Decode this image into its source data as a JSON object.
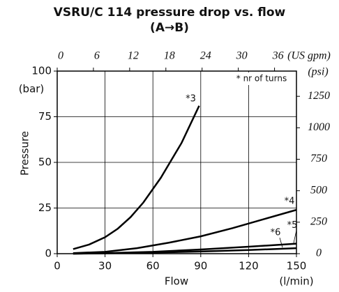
{
  "chart_data": {
    "type": "line",
    "title": "VSRU/C 114 pressure drop vs. flow",
    "subtitle": "(A→B)",
    "xlabel": "Flow",
    "xunit": "(l/min)",
    "ylabel": "Pressure",
    "yunit": "(bar)",
    "x2unit": "(US gpm)",
    "y2unit": "(psi)",
    "annotation": "* nr of turns",
    "xlim": [
      0,
      150
    ],
    "xticks": [
      0,
      30,
      60,
      90,
      120,
      150
    ],
    "ylim": [
      0,
      100
    ],
    "yticks": [
      0,
      25,
      50,
      75,
      100
    ],
    "x2lim": [
      0,
      39.63
    ],
    "x2ticks": [
      0,
      6,
      12,
      18,
      24,
      30,
      36
    ],
    "y2lim": [
      0,
      1450.4
    ],
    "y2ticks": [
      0,
      250,
      500,
      750,
      1000,
      1250
    ],
    "grid": true,
    "series": [
      {
        "name": "*3",
        "color": "#000000",
        "x": [
          10,
          20,
          30,
          38,
          46,
          54,
          65,
          78,
          89
        ],
        "values": [
          2.5,
          5,
          9,
          13.7,
          20,
          28,
          41.6,
          60.7,
          81
        ]
      },
      {
        "name": "*4",
        "color": "#000000",
        "x": [
          10,
          30,
          50,
          70,
          90,
          110,
          130,
          150
        ],
        "values": [
          0.3,
          1,
          3,
          6,
          9.5,
          14,
          19,
          24
        ]
      },
      {
        "name": "*5",
        "color": "#000000",
        "x": [
          10,
          30,
          60,
          90,
          120,
          150
        ],
        "values": [
          0,
          0.3,
          1,
          2.3,
          3.8,
          5.5
        ]
      },
      {
        "name": "*6",
        "color": "#000000",
        "x": [
          10,
          30,
          60,
          90,
          120,
          150
        ],
        "values": [
          0,
          0.2,
          0.6,
          1.2,
          2,
          3
        ]
      }
    ]
  }
}
